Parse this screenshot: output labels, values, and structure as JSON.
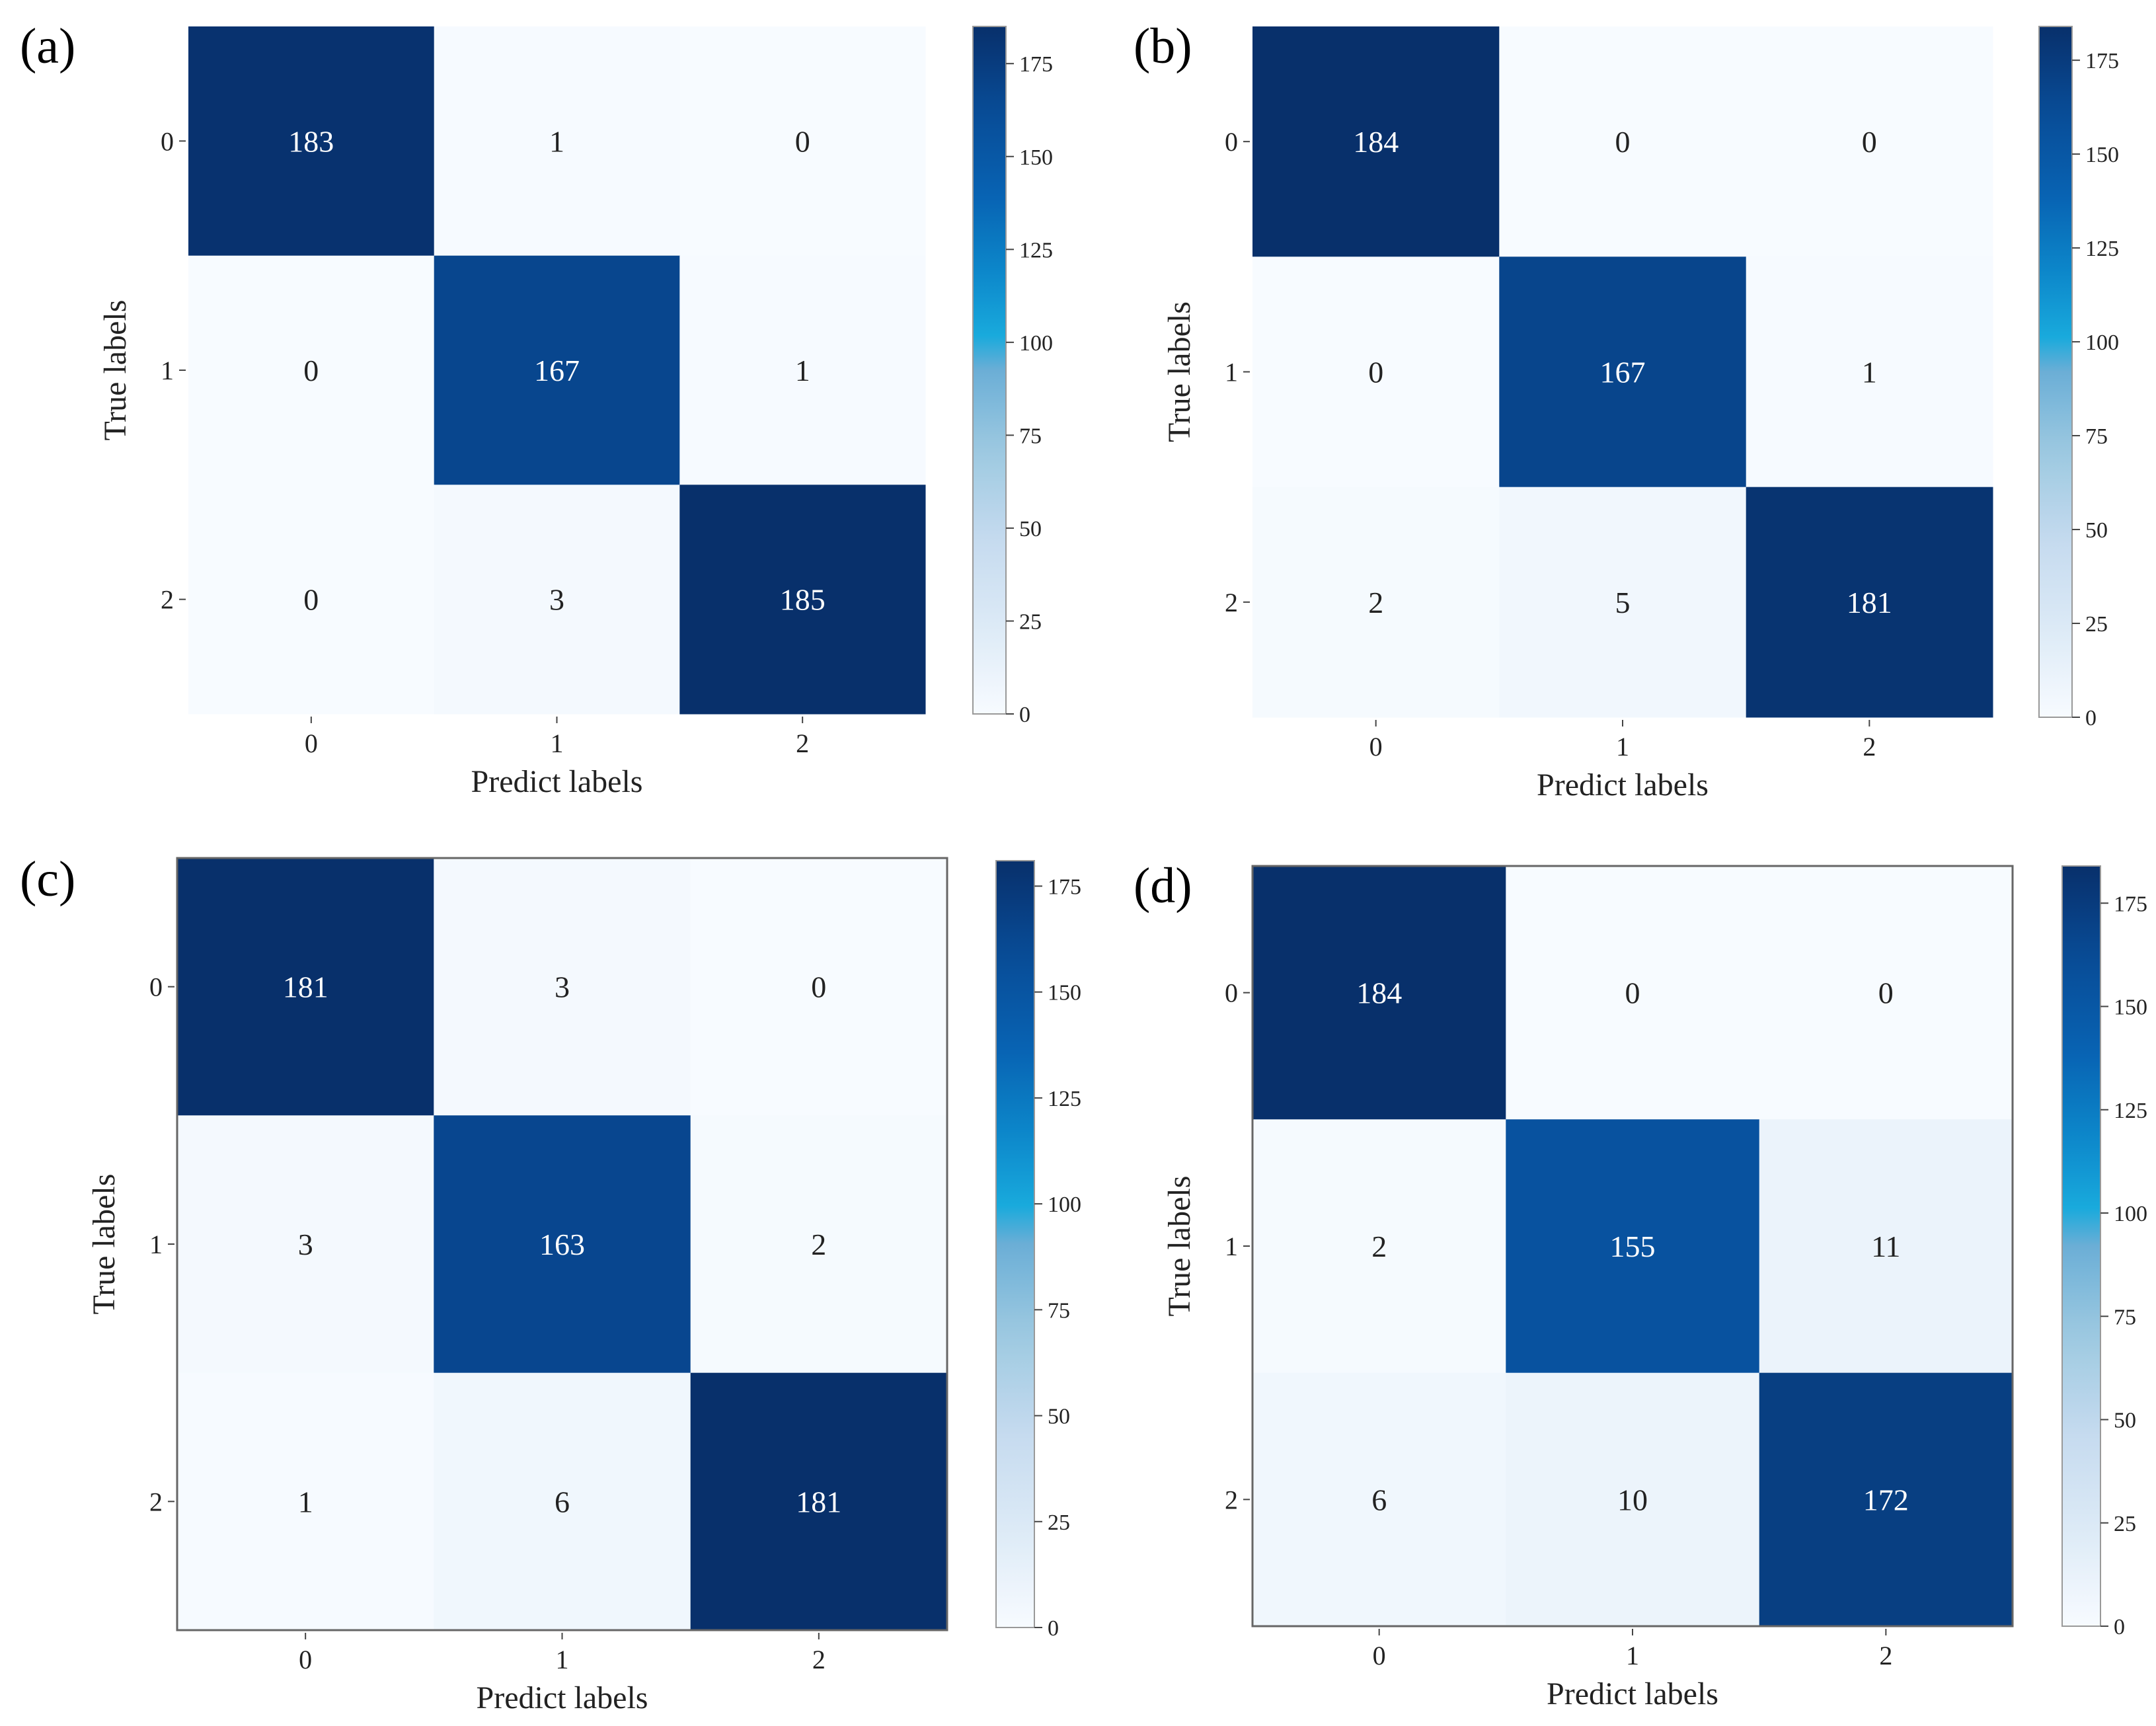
{
  "figure": {
    "panels": [
      "(a)",
      "(b)",
      "(c)",
      "(d)"
    ]
  },
  "chart_data": [
    {
      "type": "heatmap",
      "panel_label": "(a)",
      "xlabel": "Predict labels",
      "ylabel": "True labels",
      "x_categories": [
        "0",
        "1",
        "2"
      ],
      "y_categories": [
        "0",
        "1",
        "2"
      ],
      "values": [
        [
          183,
          1,
          0
        ],
        [
          0,
          167,
          1
        ],
        [
          0,
          3,
          185
        ]
      ],
      "colorbar": {
        "ticks": [
          "0",
          "25",
          "50",
          "75",
          "100",
          "125",
          "150",
          "175"
        ],
        "range": [
          0,
          185
        ]
      },
      "colormap": "Blues"
    },
    {
      "type": "heatmap",
      "panel_label": "(b)",
      "xlabel": "Predict labels",
      "ylabel": "True labels",
      "x_categories": [
        "0",
        "1",
        "2"
      ],
      "y_categories": [
        "0",
        "1",
        "2"
      ],
      "values": [
        [
          184,
          0,
          0
        ],
        [
          0,
          167,
          1
        ],
        [
          2,
          5,
          181
        ]
      ],
      "colorbar": {
        "ticks": [
          "0",
          "25",
          "50",
          "75",
          "100",
          "125",
          "150",
          "175"
        ],
        "range": [
          0,
          184
        ]
      },
      "colormap": "Blues"
    },
    {
      "type": "heatmap",
      "panel_label": "(c)",
      "xlabel": "Predict labels",
      "ylabel": "True labels",
      "x_categories": [
        "0",
        "1",
        "2"
      ],
      "y_categories": [
        "0",
        "1",
        "2"
      ],
      "values": [
        [
          181,
          3,
          0
        ],
        [
          3,
          163,
          2
        ],
        [
          1,
          6,
          181
        ]
      ],
      "colorbar": {
        "ticks": [
          "0",
          "25",
          "50",
          "75",
          "100",
          "125",
          "150",
          "175"
        ],
        "range": [
          0,
          181
        ]
      },
      "colormap": "Blues"
    },
    {
      "type": "heatmap",
      "panel_label": "(d)",
      "xlabel": "Predict labels",
      "ylabel": "True labels",
      "x_categories": [
        "0",
        "1",
        "2"
      ],
      "y_categories": [
        "0",
        "1",
        "2"
      ],
      "values": [
        [
          184,
          0,
          0
        ],
        [
          2,
          155,
          11
        ],
        [
          6,
          10,
          172
        ]
      ],
      "colorbar": {
        "ticks": [
          "0",
          "25",
          "50",
          "75",
          "100",
          "125",
          "150",
          "175"
        ],
        "range": [
          0,
          184
        ]
      },
      "colormap": "Blues"
    }
  ]
}
